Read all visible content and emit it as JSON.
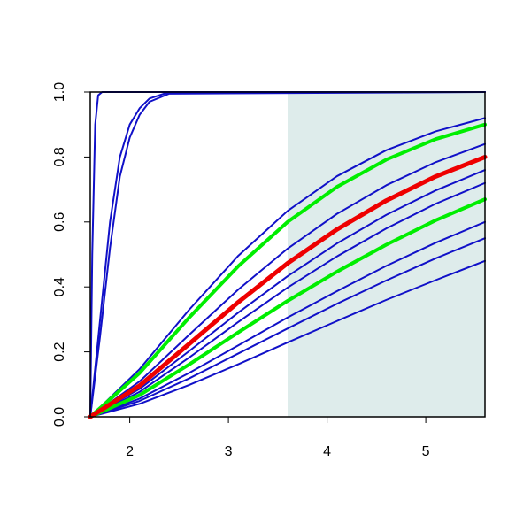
{
  "chart_data": {
    "type": "line",
    "xlim": [
      1.6,
      5.6
    ],
    "ylim": [
      0,
      1
    ],
    "xticks": [
      2,
      3,
      4,
      5
    ],
    "yticks": [
      {
        "value": 0,
        "label": "0.0"
      },
      0.2,
      0.4,
      0.6,
      0.8,
      {
        "value": 1,
        "label": "1.0"
      }
    ],
    "shaded_region": {
      "xlim": [
        3.6,
        5.6
      ],
      "color": "#deeceb"
    },
    "series": [
      {
        "color": "#1010c8",
        "x": [
          1.6,
          2.1,
          2.6,
          3.1,
          3.6,
          4.1,
          4.6,
          5.1,
          5.6
        ],
        "values": [
          0,
          0.147,
          0.329,
          0.496,
          0.634,
          0.741,
          0.821,
          0.879,
          0.92
        ]
      },
      {
        "color": "#1010c8",
        "x": [
          1.6,
          2.1,
          2.6,
          3.1,
          3.6,
          4.1,
          4.6,
          5.1,
          5.6
        ],
        "values": [
          0,
          0.109,
          0.252,
          0.392,
          0.518,
          0.625,
          0.713,
          0.784,
          0.84
        ]
      },
      {
        "color": "#1010c8",
        "x": [
          1.6,
          2.1,
          2.6,
          3.1,
          3.6,
          4.1,
          4.6,
          5.1,
          5.6
        ],
        "values": [
          0,
          0.086,
          0.202,
          0.321,
          0.433,
          0.534,
          0.622,
          0.697,
          0.76
        ]
      },
      {
        "color": "#1010c8",
        "x": [
          1.6,
          2.1,
          2.6,
          3.1,
          3.6,
          4.1,
          4.6,
          5.1,
          5.6
        ],
        "values": [
          0,
          0.077,
          0.182,
          0.292,
          0.398,
          0.494,
          0.58,
          0.656,
          0.72
        ]
      },
      {
        "color": "#1010c8",
        "x": [
          1.6,
          2.1,
          2.6,
          3.1,
          3.6,
          4.1,
          4.6,
          5.1,
          5.6
        ],
        "values": [
          0,
          0.056,
          0.135,
          0.22,
          0.306,
          0.387,
          0.465,
          0.536,
          0.6
        ]
      },
      {
        "color": "#1010c8",
        "x": [
          1.6,
          2.1,
          2.6,
          3.1,
          3.6,
          4.1,
          4.6,
          5.1,
          5.6
        ],
        "values": [
          0,
          0.049,
          0.118,
          0.195,
          0.272,
          0.348,
          0.42,
          0.488,
          0.55
        ]
      },
      {
        "color": "#1010c8",
        "x": [
          1.6,
          2.1,
          2.6,
          3.1,
          3.6,
          4.1,
          4.6,
          5.1,
          5.6
        ],
        "values": [
          0,
          0.04,
          0.098,
          0.162,
          0.229,
          0.295,
          0.36,
          0.421,
          0.48
        ]
      },
      {
        "color": "#1010c8",
        "x": [
          1.6,
          1.62,
          1.65,
          1.68,
          1.72,
          5.6
        ],
        "values": [
          0,
          0.5,
          0.9,
          0.99,
          1,
          1
        ]
      },
      {
        "color": "#1010c8",
        "x": [
          1.6,
          1.7,
          1.8,
          1.9,
          2.0,
          2.1,
          2.2,
          2.4,
          5.6
        ],
        "values": [
          0,
          0.3,
          0.6,
          0.8,
          0.9,
          0.95,
          0.98,
          1,
          1
        ]
      },
      {
        "color": "#1010c8",
        "x": [
          1.6,
          1.7,
          1.8,
          1.9,
          2.0,
          2.1,
          2.2,
          2.4,
          5.6
        ],
        "values": [
          0,
          0.25,
          0.52,
          0.74,
          0.86,
          0.93,
          0.97,
          0.995,
          1
        ]
      },
      {
        "color": "#00ee00",
        "width": 4,
        "x": [
          1.6,
          2.1,
          2.6,
          3.1,
          3.6,
          4.1,
          4.6,
          5.1,
          5.6
        ],
        "values": [
          0,
          0.135,
          0.305,
          0.464,
          0.6,
          0.708,
          0.792,
          0.855,
          0.9
        ]
      },
      {
        "color": "#00ee00",
        "width": 4,
        "x": [
          1.6,
          2.1,
          2.6,
          3.1,
          3.6,
          4.1,
          4.6,
          5.1,
          5.6
        ],
        "values": [
          0,
          0.067,
          0.161,
          0.26,
          0.357,
          0.447,
          0.53,
          0.605,
          0.67
        ]
      },
      {
        "color": "#ee0000",
        "width": 5,
        "x": [
          1.6,
          2.1,
          2.6,
          3.1,
          3.6,
          4.1,
          4.6,
          5.1,
          5.6
        ],
        "values": [
          0,
          0.096,
          0.224,
          0.353,
          0.473,
          0.577,
          0.666,
          0.74,
          0.8
        ]
      }
    ]
  }
}
